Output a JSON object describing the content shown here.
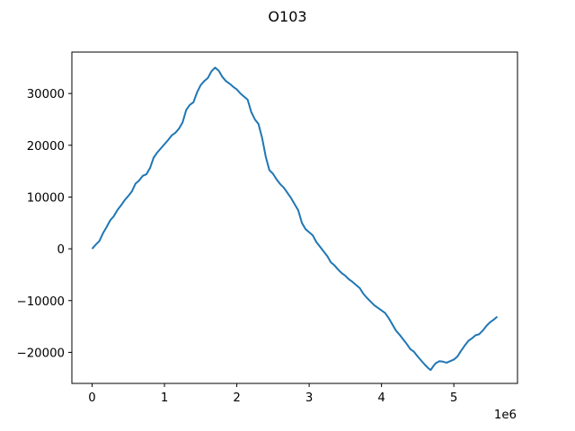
{
  "figure": {
    "title": "O103"
  },
  "chart_data": {
    "type": "line",
    "title": "O103",
    "xlabel": "",
    "ylabel": "",
    "x_offset_text": "1e6",
    "xlim": [
      -0.28,
      5.88
    ],
    "ylim": [
      -26000,
      38000
    ],
    "xticks": [
      0,
      1,
      2,
      3,
      4,
      5
    ],
    "xtick_labels": [
      "0",
      "1",
      "2",
      "3",
      "4",
      "5"
    ],
    "yticks": [
      -20000,
      -10000,
      0,
      10000,
      20000,
      30000
    ],
    "ytick_labels": [
      "−20000",
      "−10000",
      "0",
      "10000",
      "20000",
      "30000"
    ],
    "grid": false,
    "series": [
      {
        "color": "#1f77b4",
        "x": [
          0,
          0.05,
          0.1,
          0.15,
          0.2,
          0.25,
          0.3,
          0.35,
          0.4,
          0.45,
          0.5,
          0.55,
          0.6,
          0.65,
          0.7,
          0.75,
          0.8,
          0.85,
          0.9,
          0.95,
          1.0,
          1.05,
          1.1,
          1.15,
          1.2,
          1.25,
          1.3,
          1.35,
          1.4,
          1.45,
          1.5,
          1.55,
          1.6,
          1.65,
          1.7,
          1.75,
          1.8,
          1.85,
          1.9,
          1.95,
          2.0,
          2.05,
          2.1,
          2.15,
          2.2,
          2.25,
          2.3,
          2.35,
          2.4,
          2.45,
          2.5,
          2.55,
          2.6,
          2.65,
          2.7,
          2.75,
          2.8,
          2.85,
          2.9,
          2.95,
          3.0,
          3.05,
          3.1,
          3.15,
          3.2,
          3.25,
          3.3,
          3.35,
          3.4,
          3.45,
          3.5,
          3.55,
          3.6,
          3.65,
          3.7,
          3.75,
          3.8,
          3.85,
          3.9,
          3.95,
          4.0,
          4.05,
          4.1,
          4.15,
          4.2,
          4.25,
          4.3,
          4.35,
          4.4,
          4.45,
          4.5,
          4.55,
          4.6,
          4.65,
          4.68,
          4.72,
          4.75,
          4.8,
          4.85,
          4.9,
          4.95,
          5.0,
          5.05,
          5.1,
          5.15,
          5.2,
          5.25,
          5.3,
          5.35,
          5.4,
          5.45,
          5.5,
          5.55,
          5.6
        ],
        "y": [
          0,
          800,
          1500,
          3000,
          4200,
          5500,
          6300,
          7500,
          8400,
          9400,
          10200,
          11100,
          12600,
          13200,
          14100,
          14400,
          15600,
          17600,
          18600,
          19400,
          20200,
          21000,
          21900,
          22400,
          23200,
          24400,
          26800,
          27800,
          28300,
          30200,
          31600,
          32400,
          33000,
          34300,
          35000,
          34400,
          33200,
          32400,
          31900,
          31300,
          30800,
          30000,
          29400,
          28800,
          26400,
          25000,
          24100,
          21400,
          17800,
          15200,
          14500,
          13400,
          12500,
          11800,
          10800,
          9800,
          8600,
          7400,
          5000,
          3800,
          3200,
          2600,
          1300,
          400,
          -500,
          -1400,
          -2600,
          -3200,
          -4000,
          -4700,
          -5200,
          -5900,
          -6400,
          -7000,
          -7600,
          -8700,
          -9500,
          -10200,
          -10900,
          -11400,
          -11900,
          -12400,
          -13400,
          -14600,
          -15800,
          -16600,
          -17500,
          -18400,
          -19400,
          -19900,
          -20800,
          -21600,
          -22400,
          -23100,
          -23400,
          -22600,
          -22100,
          -21700,
          -21800,
          -22000,
          -21700,
          -21400,
          -20800,
          -19700,
          -18700,
          -17800,
          -17300,
          -16700,
          -16500,
          -15800,
          -14900,
          -14200,
          -13700,
          -13100
        ]
      }
    ]
  }
}
